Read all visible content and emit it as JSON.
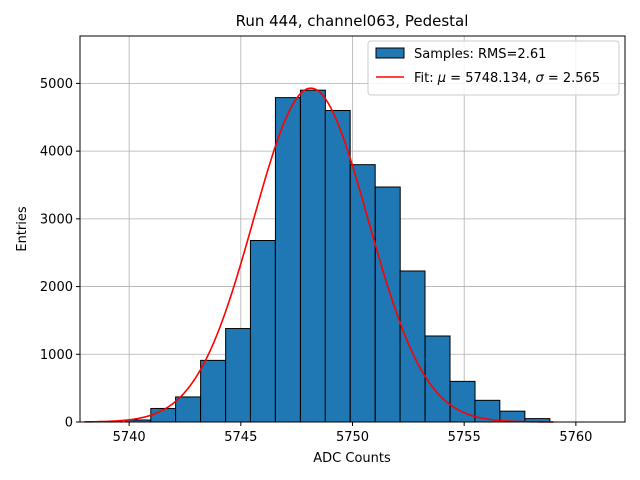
{
  "chart_data": {
    "type": "bar",
    "title": "Run 444, channel063, Pedestal",
    "xlabel": "ADC Counts",
    "ylabel": "Entries",
    "xlim": [
      5737.8,
      5762.2
    ],
    "ylim": [
      0,
      5700
    ],
    "grid": true,
    "legend_position": "top-right",
    "x_ticks": [
      5740,
      5745,
      5750,
      5755,
      5760
    ],
    "y_ticks": [
      0,
      1000,
      2000,
      3000,
      4000,
      5000
    ],
    "bin_width": 1.116,
    "bars": {
      "name": "Samples: RMS=2.61",
      "color": "#1f77b4",
      "bin_starts": [
        5739.85,
        5740.97,
        5742.08,
        5743.2,
        5744.32,
        5745.43,
        5746.55,
        5747.67,
        5748.78,
        5749.9,
        5751.02,
        5752.13,
        5753.25,
        5754.37,
        5755.48,
        5756.6,
        5757.72
      ],
      "values": [
        30,
        200,
        370,
        910,
        1380,
        2680,
        4790,
        4900,
        4600,
        3800,
        3470,
        2230,
        1270,
        600,
        320,
        160,
        50
      ]
    },
    "fit": {
      "name_prefix": "Fit: ",
      "name_mu": "μ",
      "name_mid": " = 5748.134, ",
      "name_sigma": "σ",
      "name_suffix": " = 2.565",
      "color": "#ff0000",
      "mu": 5748.134,
      "sigma": 2.565,
      "amplitude": 4930,
      "x_range": [
        5738.0,
        5759.0
      ]
    }
  }
}
